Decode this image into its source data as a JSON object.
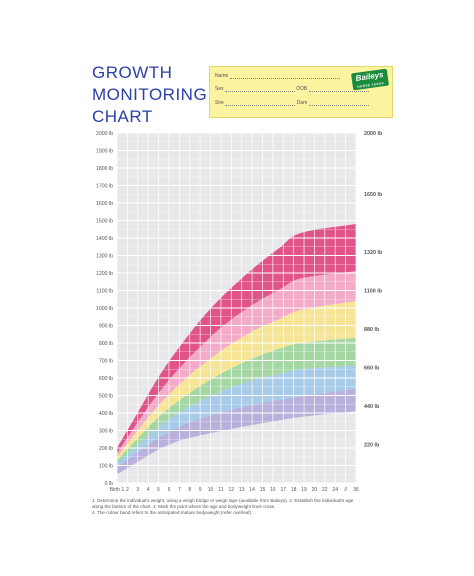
{
  "header": {
    "title_lines": [
      "GROWTH",
      "MONITORING",
      "CHART"
    ],
    "fields": {
      "name": "Name",
      "sex": "Sex",
      "dob": "DOB",
      "sire": "Sire",
      "dam": "Dam"
    },
    "logo": {
      "text": "Baileys",
      "subtext": "HORSE FEEDS"
    }
  },
  "notes": [
    "1. Determine the individual's weight, using a weigh bridge or weigh tape (available from Baileys).  2. Establish the individual's age",
    "along the bottom of the chart.  3. Mark the point where the age and bodyweight lines cross.",
    "4. The colour band refers to the anticipated mature bodyweight (refer overleaf)."
  ],
  "chart_data": {
    "type": "area",
    "title": "GROWTH MONITORING CHART",
    "x_tick_labels": [
      "Birth 1",
      "2",
      "3",
      "4",
      "5",
      "6",
      "7",
      "8",
      "9",
      "10",
      "11",
      "12",
      "13",
      "14",
      "15",
      "16",
      "17",
      "18",
      "19",
      "20",
      "22",
      "24",
      "//",
      "36"
    ],
    "x_months": [
      1,
      36
    ],
    "ylim": [
      0,
      2000
    ],
    "y_left_ticks": [
      0,
      100,
      200,
      300,
      400,
      500,
      600,
      700,
      800,
      900,
      1000,
      1100,
      1200,
      1300,
      1400,
      1500,
      1600,
      1700,
      1800,
      1900,
      2000
    ],
    "y_left_tick_labels": [
      "0 lb",
      "100 lb",
      "200 lb",
      "300 lb",
      "400 lb",
      "500 lb",
      "600 lb",
      "700 lb",
      "800 lb",
      "900 lb",
      "1000 lb",
      "1100 lb",
      "1200 lb",
      "1300 lb",
      "1400 lb",
      "1500 lb",
      "1600 lb",
      "1700 lb",
      "1800 lb",
      "1900 lb",
      "2000 lb"
    ],
    "y_right_tick_values": [
      220,
      440,
      660,
      880,
      1100,
      1320,
      1650,
      2000
    ],
    "y_right_tick_labels": [
      "220 lb",
      "440 lb",
      "660 lb",
      "880 lb",
      "1100 lb",
      "1320 lb",
      "1650 lb",
      "2000 lb"
    ],
    "grid": true,
    "bands": [
      {
        "color": "#b9b0dc",
        "lower": [
          50,
          120,
          190,
          240,
          270,
          295,
          318,
          340,
          360,
          378,
          410
        ],
        "upper": [
          90,
          175,
          255,
          320,
          365,
          400,
          430,
          455,
          475,
          495,
          540
        ]
      },
      {
        "color": "#a8cbe9",
        "lower": [
          90,
          175,
          255,
          320,
          365,
          400,
          430,
          455,
          475,
          495,
          540
        ],
        "upper": [
          115,
          215,
          320,
          400,
          465,
          520,
          565,
          600,
          625,
          650,
          670
        ]
      },
      {
        "color": "#a5d7a4",
        "lower": [
          115,
          215,
          320,
          400,
          465,
          520,
          565,
          600,
          625,
          650,
          670
        ],
        "upper": [
          130,
          255,
          375,
          470,
          550,
          620,
          680,
          730,
          770,
          800,
          830
        ]
      },
      {
        "color": "#f6e596",
        "lower": [
          130,
          255,
          375,
          470,
          550,
          620,
          680,
          730,
          770,
          800,
          830
        ],
        "upper": [
          150,
          300,
          440,
          560,
          660,
          750,
          825,
          890,
          940,
          990,
          1040
        ]
      },
      {
        "color": "#f4abc9",
        "lower": [
          150,
          300,
          440,
          560,
          660,
          750,
          825,
          890,
          940,
          990,
          1040
        ],
        "upper": [
          170,
          345,
          510,
          650,
          770,
          880,
          970,
          1045,
          1110,
          1170,
          1210
        ]
      },
      {
        "color": "#e0548a",
        "lower": [
          170,
          345,
          510,
          650,
          770,
          880,
          970,
          1045,
          1110,
          1170,
          1210
        ],
        "upper": [
          200,
          400,
          600,
          770,
          920,
          1050,
          1160,
          1260,
          1350,
          1430,
          1480
        ]
      }
    ],
    "band_x_months": [
      1,
      4,
      7,
      10,
      13,
      16,
      19,
      22,
      25,
      28,
      36
    ],
    "palette": {
      "axis_text": "#555555",
      "grid": "#ffffff",
      "title": "#2b3fa8"
    }
  }
}
